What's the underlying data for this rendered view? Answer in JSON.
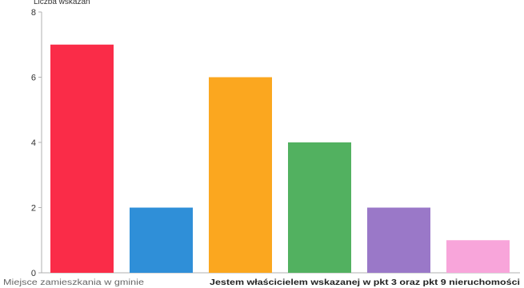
{
  "chart_data": {
    "type": "bar",
    "ylabel": "Liczba wskazań",
    "ylim": [
      0,
      8
    ],
    "yticks": [
      0,
      2,
      4,
      6,
      8
    ],
    "grid": false,
    "categories": [
      "Miejsce zamieszkania w gminie",
      "",
      "Jestem właścicielem wskazanej w pkt 3 oraz pkt 9 nieruchomości",
      "",
      "",
      ""
    ],
    "values": [
      7,
      2,
      6,
      4,
      2,
      1
    ],
    "colors": [
      "#fa2c48",
      "#2f8fd8",
      "#fba71f",
      "#52b160",
      "#9a78c8",
      "#f8a5da"
    ]
  }
}
